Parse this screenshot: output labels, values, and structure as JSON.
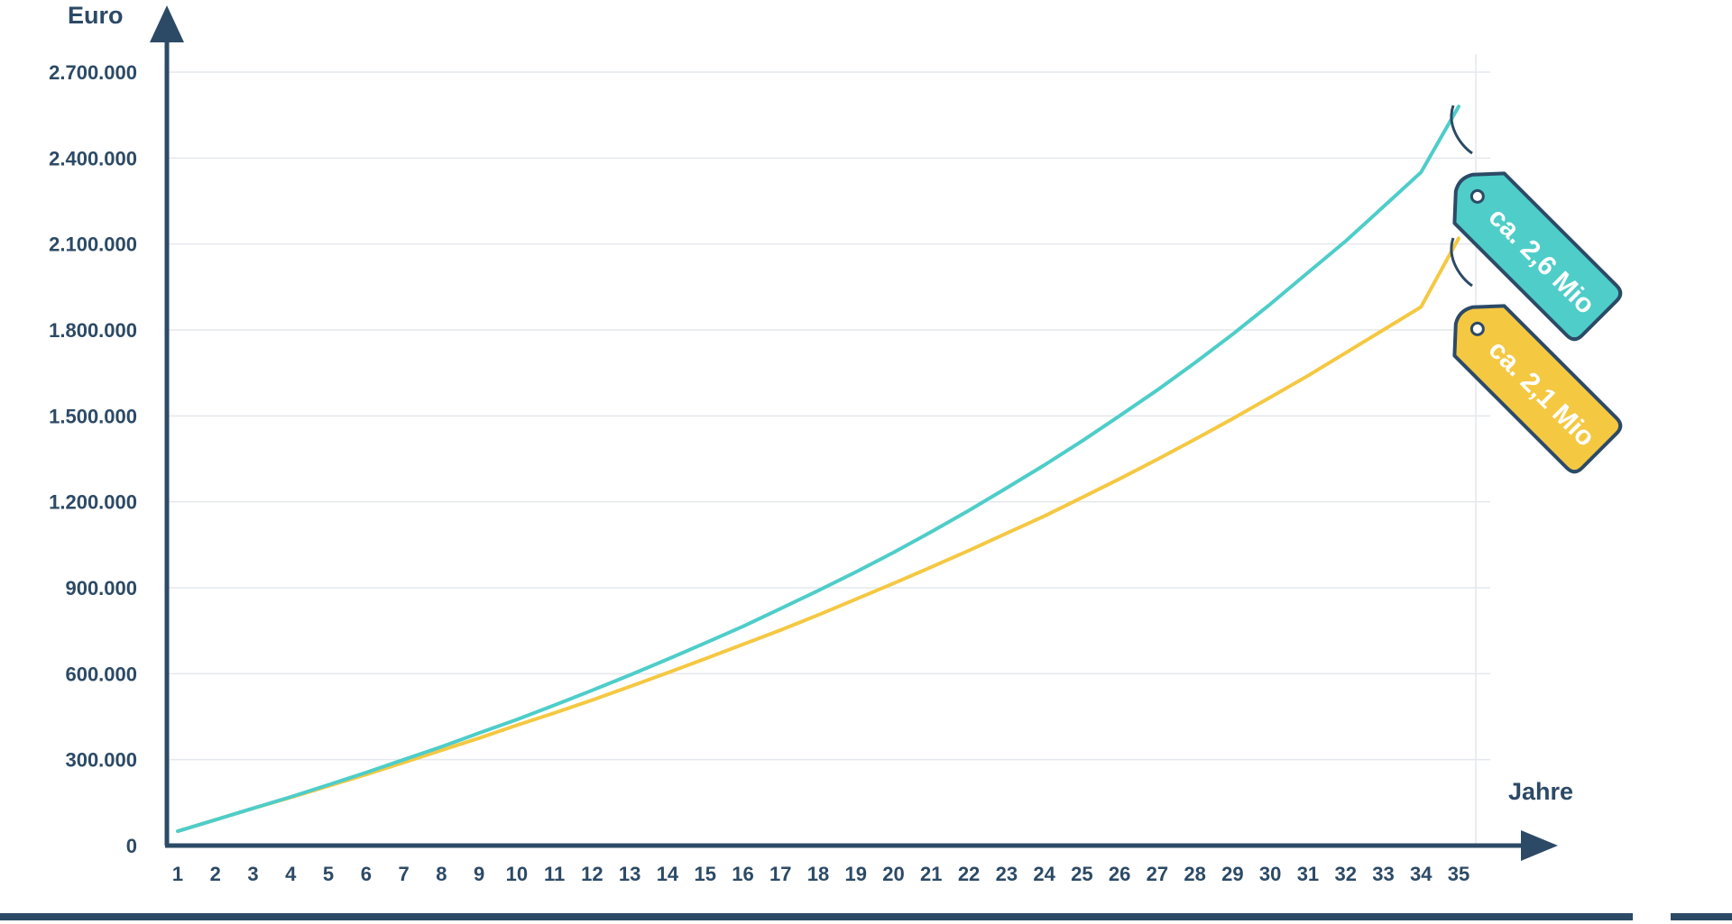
{
  "chart_data": {
    "type": "line",
    "ylabel": "Euro",
    "xlabel": "Jahre",
    "x": [
      1,
      2,
      3,
      4,
      5,
      6,
      7,
      8,
      9,
      10,
      11,
      12,
      13,
      14,
      15,
      16,
      17,
      18,
      19,
      20,
      21,
      22,
      23,
      24,
      25,
      26,
      27,
      28,
      29,
      30,
      31,
      32,
      33,
      34,
      35
    ],
    "ylim": [
      0,
      2700000
    ],
    "yticks": [
      0,
      300000,
      600000,
      900000,
      1200000,
      1500000,
      1800000,
      2100000,
      2400000,
      2700000
    ],
    "ytick_labels": [
      "0",
      "300.000",
      "600.000",
      "900.000",
      "1.200.000",
      "1.500.000",
      "1.800.000",
      "2.100.000",
      "2.400.000",
      "2.700.000"
    ],
    "grid": true,
    "series": [
      {
        "color": "#4ecdc9",
        "values": [
          50000,
          90000,
          130000,
          170000,
          212000,
          255000,
          300000,
          345000,
          393000,
          440000,
          490000,
          542000,
          595000,
          650000,
          707000,
          765000,
          827000,
          890000,
          955000,
          1023000,
          1095000,
          1170000,
          1248000,
          1328000,
          1412000,
          1500000,
          1590000,
          1685000,
          1785000,
          1890000,
          2000000,
          2110000,
          2230000,
          2350000,
          2580000
        ],
        "tag_label": "ca. 2,6 Mio"
      },
      {
        "color": "#f5c842",
        "values": [
          50000,
          90000,
          130000,
          168000,
          208000,
          248000,
          290000,
          333000,
          375000,
          420000,
          463000,
          508000,
          555000,
          603000,
          652000,
          702000,
          752000,
          805000,
          860000,
          915000,
          972000,
          1030000,
          1090000,
          1150000,
          1215000,
          1280000,
          1348000,
          1418000,
          1490000,
          1565000,
          1640000,
          1720000,
          1800000,
          1880000,
          2120000
        ],
        "tag_label": "ca. 2,1 Mio"
      }
    ]
  }
}
